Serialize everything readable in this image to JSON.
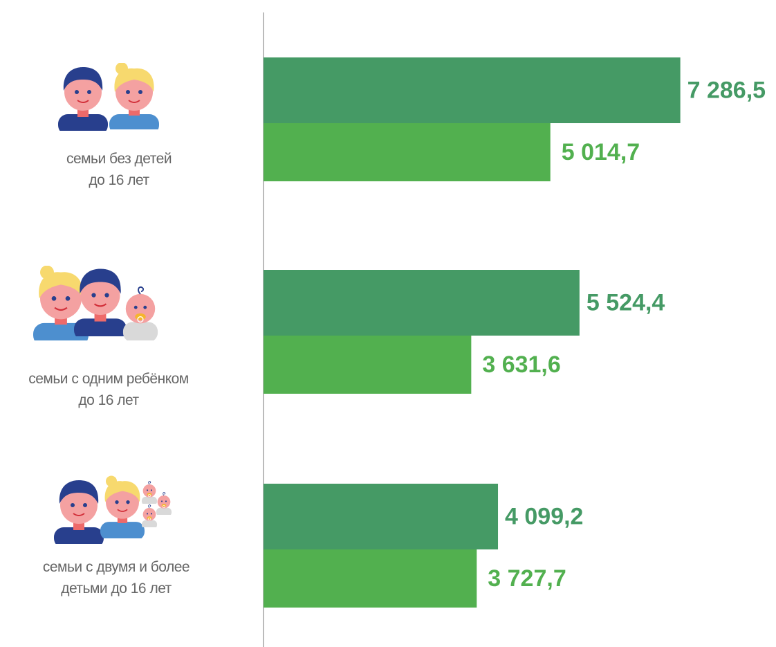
{
  "chart_data": {
    "type": "bar",
    "orientation": "horizontal",
    "categories": [
      "семьи без детей\nдо 16 лет",
      "семьи с одним ребёнком\nдо 16 лет",
      "семьи с двумя и более\nдетьми до 16 лет"
    ],
    "series": [
      {
        "color": "#459a65",
        "values": [
          7286.5,
          5524.4,
          4099.2
        ],
        "value_labels": [
          "7 286,5",
          "5 524,4",
          "4 099,2"
        ]
      },
      {
        "color": "#52b04f",
        "values": [
          5014.7,
          3631.6,
          3727.7
        ],
        "value_labels": [
          "5 014,7",
          "3 631,6",
          "3 727,7"
        ]
      }
    ],
    "xlim": [
      0,
      8500
    ]
  }
}
